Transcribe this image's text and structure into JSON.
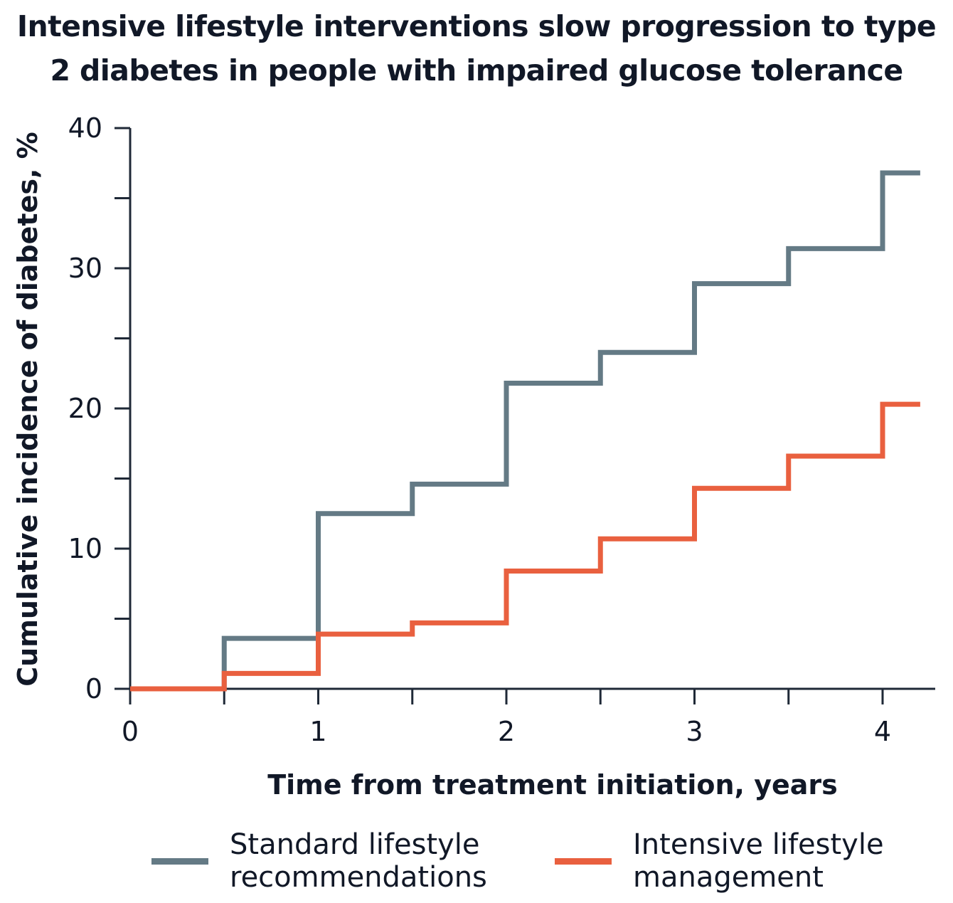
{
  "chart_data": {
    "type": "line",
    "step": true,
    "title_lines": [
      "Intensive lifestyle interventions slow progression to type",
      "2 diabetes in people with impaired glucose tolerance"
    ],
    "xlabel": "Time from treatment initiation, years",
    "ylabel": "Cumulative incidence of diabetes, %",
    "xlim": [
      0,
      4.2
    ],
    "ylim": [
      0,
      40
    ],
    "x_ticks": [
      0,
      1,
      2,
      3,
      4
    ],
    "y_ticks": [
      0,
      10,
      20,
      30,
      40
    ],
    "grid": false,
    "legend_position": "bottom",
    "series": [
      {
        "name_lines": [
          "Standard lifestyle",
          "recommendations"
        ],
        "color": "#647a85",
        "x": [
          0,
          0.5,
          1,
          1.5,
          2,
          2.5,
          3,
          3.5,
          4,
          4.2
        ],
        "y": [
          0,
          3.6,
          12.5,
          14.6,
          21.8,
          24,
          28.9,
          31.4,
          36.8,
          36.8
        ]
      },
      {
        "name_lines": [
          "Intensive lifestyle",
          "management"
        ],
        "color": "#e9603f",
        "x": [
          0,
          0.5,
          1,
          1.5,
          2,
          2.5,
          3,
          3.5,
          4,
          4.2
        ],
        "y": [
          0,
          1.1,
          3.9,
          4.7,
          8.4,
          10.7,
          14.3,
          16.6,
          20.3,
          20.3
        ]
      }
    ]
  }
}
